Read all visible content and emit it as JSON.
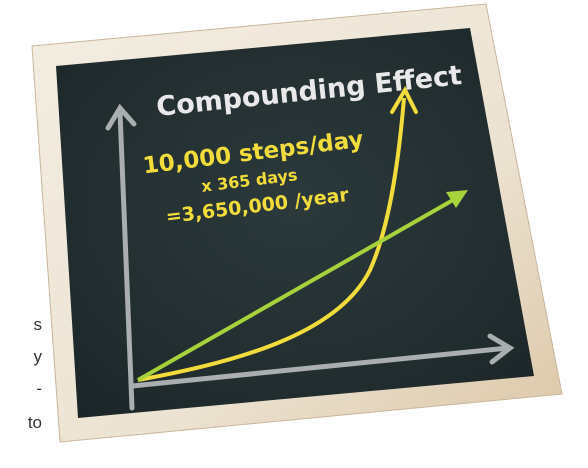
{
  "fragments": [
    "s",
    "y",
    "-",
    "to"
  ],
  "board": {
    "title": "Compounding Effect",
    "lines": [
      "10,000 steps/day",
      "x 365 days",
      "=3,650,000 /year"
    ]
  }
}
